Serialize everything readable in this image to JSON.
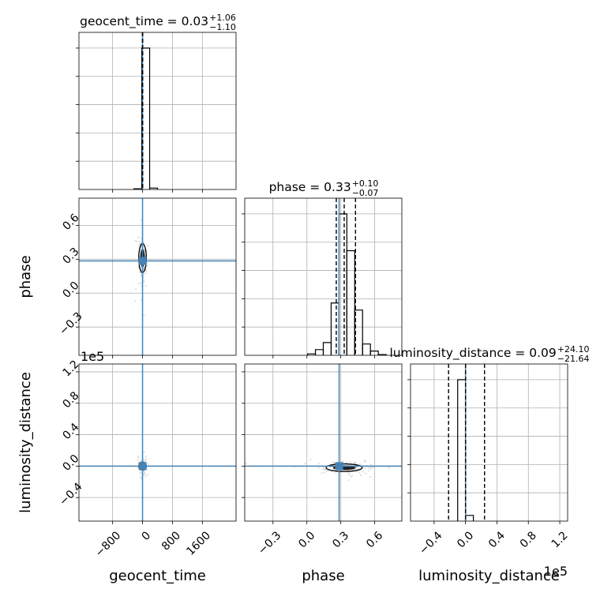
{
  "colors": {
    "truth": "#4682b4",
    "hist": "#000000",
    "grid": "#b0b0b0",
    "samples": "#c8c8c8"
  },
  "chart_data": {
    "type": "corner",
    "parameters": [
      "geocent_time",
      "phase",
      "luminosity_distance"
    ],
    "titles": {
      "geocent_time": {
        "main": "geocent_time = 0.03",
        "sup": "+1.06",
        "sub": "−1.10"
      },
      "phase": {
        "main": "phase = 0.33",
        "sup": "+0.10",
        "sub": "−0.07"
      },
      "luminosity_distance": {
        "main": "luminosity_distance = 0.09",
        "sup": "+24.10",
        "sub": "−21.64"
      }
    },
    "axis_labels": {
      "geocent_time": "geocent_time",
      "phase": "phase",
      "luminosity_distance": "luminosity_distance"
    },
    "ranges": {
      "geocent_time": [
        -1700,
        2500
      ],
      "phase": [
        -0.55,
        0.84
      ],
      "luminosity_distance": [
        -70000,
        130000
      ]
    },
    "ticks": {
      "geocent_time": {
        "values": [
          -800,
          0,
          800,
          1600
        ],
        "labels": [
          "−800",
          "0",
          "800",
          "1600"
        ]
      },
      "phase": {
        "values": [
          -0.3,
          0.0,
          0.3,
          0.6
        ],
        "labels": [
          "−0.3",
          "0.0",
          "0.3",
          "0.6"
        ]
      },
      "luminosity_distance": {
        "values": [
          -40000,
          0,
          40000,
          80000,
          120000
        ],
        "labels": [
          "−0.4",
          "0.0",
          "0.4",
          "0.8",
          "1.2"
        ]
      }
    },
    "offset_text": "1e5",
    "truths": {
      "geocent_time": 0,
      "phase": 0.285,
      "luminosity_distance": 0
    },
    "quantiles": {
      "geocent_time": [
        -1.07,
        0.03,
        1.09
      ],
      "phase": [
        0.26,
        0.33,
        0.43
      ],
      "luminosity_distance": [
        -21550,
        90,
        24190
      ]
    },
    "histograms": {
      "geocent_time": {
        "edges": [
          -1700,
          -1490,
          -1280,
          -1070,
          -860,
          -650,
          -440,
          -230,
          -20,
          190,
          400,
          610,
          820,
          1030,
          1240,
          1450,
          1660,
          1870,
          2080,
          2290,
          2500
        ],
        "counts": [
          0,
          0,
          0,
          0,
          0,
          0,
          0,
          0.005,
          1.0,
          0.01,
          0,
          0,
          0,
          0,
          0,
          0,
          0,
          0,
          0,
          0
        ]
      },
      "phase": {
        "edges": [
          -0.55,
          -0.4805,
          -0.411,
          -0.3415,
          -0.272,
          -0.2025,
          -0.133,
          -0.0635,
          0.006,
          0.0755,
          0.145,
          0.2145,
          0.284,
          0.3535,
          0.423,
          0.4925,
          0.562,
          0.6315,
          0.701,
          0.7705,
          0.84
        ],
        "counts": [
          0,
          0,
          0,
          0,
          0,
          0,
          0,
          0,
          0.01,
          0.04,
          0.09,
          0.37,
          1.0,
          0.74,
          0.32,
          0.08,
          0.03,
          0.005,
          0,
          0
        ]
      },
      "luminosity_distance": {
        "edges": [
          -70000,
          -60000,
          -50000,
          -40000,
          -30000,
          -20000,
          -10000,
          0,
          10000,
          20000,
          30000,
          40000,
          50000,
          60000,
          70000,
          80000,
          90000,
          100000,
          110000,
          120000,
          130000
        ],
        "counts": [
          0,
          0,
          0,
          0,
          0,
          0,
          1.0,
          0.04,
          0,
          0,
          0,
          0,
          0,
          0,
          0,
          0,
          0,
          0,
          0,
          0
        ]
      }
    },
    "joint_centers": {
      "geocent_time_vs_phase": {
        "x": 0,
        "y": 0.31,
        "sx": 40,
        "sy": 0.08
      },
      "geocent_time_vs_luminosity_distance": {
        "x": 0,
        "y": 0,
        "sx": 30,
        "sy": 3000
      },
      "phase_vs_luminosity_distance": {
        "x": 0.33,
        "y": -2000,
        "sx": 0.1,
        "sy": 3000
      }
    },
    "grid": true
  }
}
